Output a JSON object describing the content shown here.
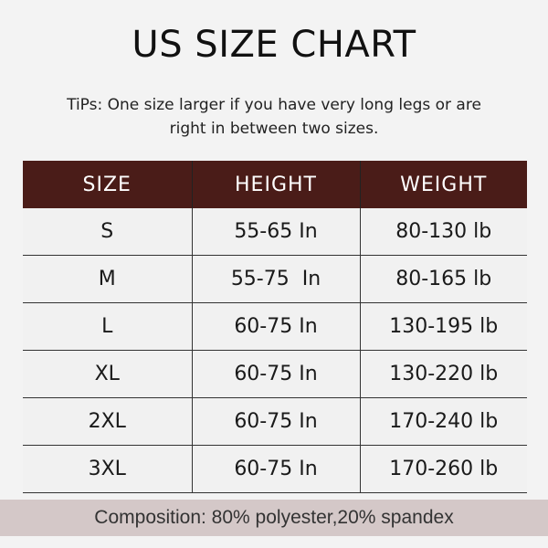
{
  "title": "US SIZE CHART",
  "tips": [
    "TiPs: One size larger if you have very long legs or are",
    "right in between two sizes."
  ],
  "colors": {
    "header_bg": "#4a1c18",
    "footer_bg": "#d4c8c8",
    "page_bg": "#f3f3f3"
  },
  "table": {
    "headers": [
      "SIZE",
      "HEIGHT",
      "WEIGHT"
    ],
    "rows": [
      [
        "S",
        "55-65 In",
        "80-130 lb"
      ],
      [
        "M",
        "55-75  In",
        "80-165 lb"
      ],
      [
        "L",
        "60-75 In",
        "130-195 lb"
      ],
      [
        "XL",
        "60-75 In",
        "130-220 lb"
      ],
      [
        "2XL",
        "60-75 In",
        "170-240 lb"
      ],
      [
        "3XL",
        "60-75 In",
        "170-260 lb"
      ]
    ]
  },
  "footer": "Composition: 80% polyester,20% spandex"
}
